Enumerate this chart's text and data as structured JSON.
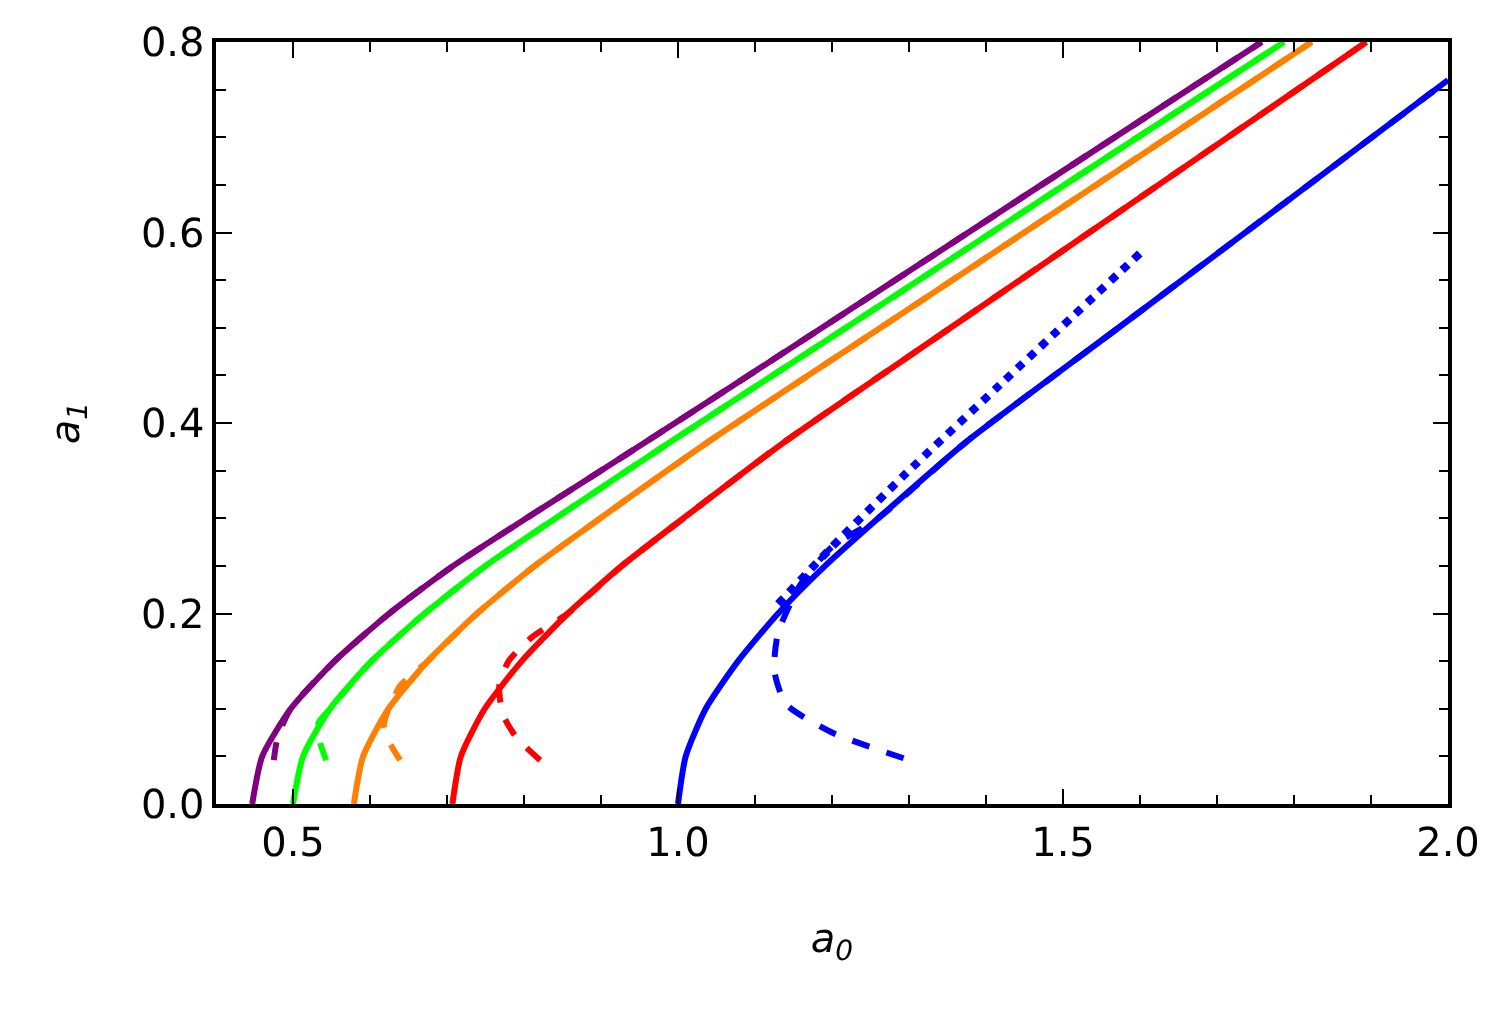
{
  "chart_data": {
    "type": "line",
    "xlabel": "a$_{0}$",
    "ylabel": "a$_{1}$",
    "xlim": [
      0.4,
      2.0
    ],
    "ylim": [
      0,
      0.8
    ],
    "xticks": [
      0.5,
      {
        "value": 1.0,
        "label": "1.0"
      },
      1.5,
      {
        "value": 2.0,
        "label": "2.0"
      }
    ],
    "yticks": [
      {
        "value": 0,
        "label": "0.0"
      },
      0.2,
      0.4,
      0.6,
      0.8
    ],
    "marker": "none",
    "series": [
      {
        "color": "#800080",
        "line_style": "solid",
        "x": [
          0.447,
          0.46,
          0.497,
          0.554,
          0.625,
          0.708,
          0.803,
          0.958,
          1.187,
          1.472,
          1.758
        ],
        "values": [
          0,
          0.05,
          0.1,
          0.15,
          0.2,
          0.25,
          0.3,
          0.38,
          0.5,
          0.65,
          0.8
        ]
      },
      {
        "color": "#800080",
        "line_style": "dashed",
        "x": [
          0.475,
          0.48,
          0.497,
          0.554,
          0.625,
          0.708,
          0.803,
          0.958,
          1.187,
          1.472,
          1.758
        ],
        "values": [
          0.046,
          0.07,
          0.1,
          0.15,
          0.2,
          0.25,
          0.3,
          0.38,
          0.5,
          0.65,
          0.8
        ]
      },
      {
        "color": "#00ff00",
        "line_style": "solid",
        "x": [
          0.5,
          0.513,
          0.548,
          0.602,
          0.671,
          0.75,
          0.841,
          0.99,
          1.218,
          1.502,
          1.787
        ],
        "values": [
          0,
          0.05,
          0.1,
          0.15,
          0.2,
          0.25,
          0.3,
          0.38,
          0.5,
          0.65,
          0.8
        ]
      },
      {
        "color": "#00ff00",
        "line_style": "dashed",
        "x": [
          0.543,
          0.535,
          0.533,
          0.548,
          0.602,
          0.671,
          0.75,
          0.841,
          0.99,
          1.218,
          1.502,
          1.787
        ],
        "values": [
          0.046,
          0.065,
          0.085,
          0.1,
          0.15,
          0.2,
          0.25,
          0.3,
          0.38,
          0.5,
          0.65,
          0.8
        ]
      },
      {
        "color": "#ff8000",
        "line_style": "solid",
        "x": [
          0.579,
          0.591,
          0.624,
          0.675,
          0.739,
          0.814,
          0.899,
          1.039,
          1.263,
          1.543,
          1.823
        ],
        "values": [
          0,
          0.05,
          0.1,
          0.15,
          0.2,
          0.25,
          0.3,
          0.38,
          0.5,
          0.65,
          0.8
        ]
      },
      {
        "color": "#ff8000",
        "line_style": "dashed",
        "x": [
          0.639,
          0.625,
          0.618,
          0.624,
          0.64,
          0.675,
          0.739,
          0.814,
          0.899,
          1.039,
          1.263,
          1.543,
          1.823
        ],
        "values": [
          0.046,
          0.065,
          0.082,
          0.1,
          0.125,
          0.15,
          0.2,
          0.25,
          0.3,
          0.38,
          0.5,
          0.65,
          0.8
        ]
      },
      {
        "color": "#ff0000",
        "line_style": "solid",
        "x": [
          0.707,
          0.718,
          0.749,
          0.797,
          0.857,
          0.927,
          1.007,
          1.138,
          1.354,
          1.624,
          1.894
        ],
        "values": [
          0,
          0.05,
          0.1,
          0.15,
          0.2,
          0.25,
          0.3,
          0.38,
          0.5,
          0.65,
          0.8
        ]
      },
      {
        "color": "#ff0000",
        "line_style": "dashed",
        "x": [
          0.821,
          0.79,
          0.772,
          0.768,
          0.78,
          0.81,
          0.857,
          0.927,
          1.007,
          1.138,
          1.354,
          1.624,
          1.894
        ],
        "values": [
          0.046,
          0.07,
          0.095,
          0.125,
          0.15,
          0.175,
          0.2,
          0.25,
          0.3,
          0.38,
          0.5,
          0.65,
          0.8
        ]
      },
      {
        "color": "#0000ff",
        "line_style": "solid",
        "x": [
          1.0,
          1.01,
          1.036,
          1.078,
          1.13,
          1.191,
          1.26,
          1.374,
          1.572,
          1.819,
          2.0
        ],
        "values": [
          0,
          0.05,
          0.1,
          0.15,
          0.2,
          0.25,
          0.3,
          0.38,
          0.5,
          0.65,
          0.76
        ]
      },
      {
        "color": "#0000ff",
        "line_style": "dashed",
        "x": [
          1.293,
          1.2,
          1.14,
          1.125,
          1.13,
          1.158,
          1.2,
          1.26,
          1.374,
          1.572,
          1.819,
          2.0
        ],
        "values": [
          0.048,
          0.075,
          0.105,
          0.14,
          0.18,
          0.229,
          0.27,
          0.3,
          0.38,
          0.5,
          0.65,
          0.76
        ]
      },
      {
        "color": "#0000ff",
        "line_style": "dotted",
        "x": [
          1.13,
          1.2,
          1.296,
          1.418,
          1.605
        ],
        "values": [
          0.21,
          0.27,
          0.347,
          0.44,
          0.582
        ]
      }
    ]
  }
}
